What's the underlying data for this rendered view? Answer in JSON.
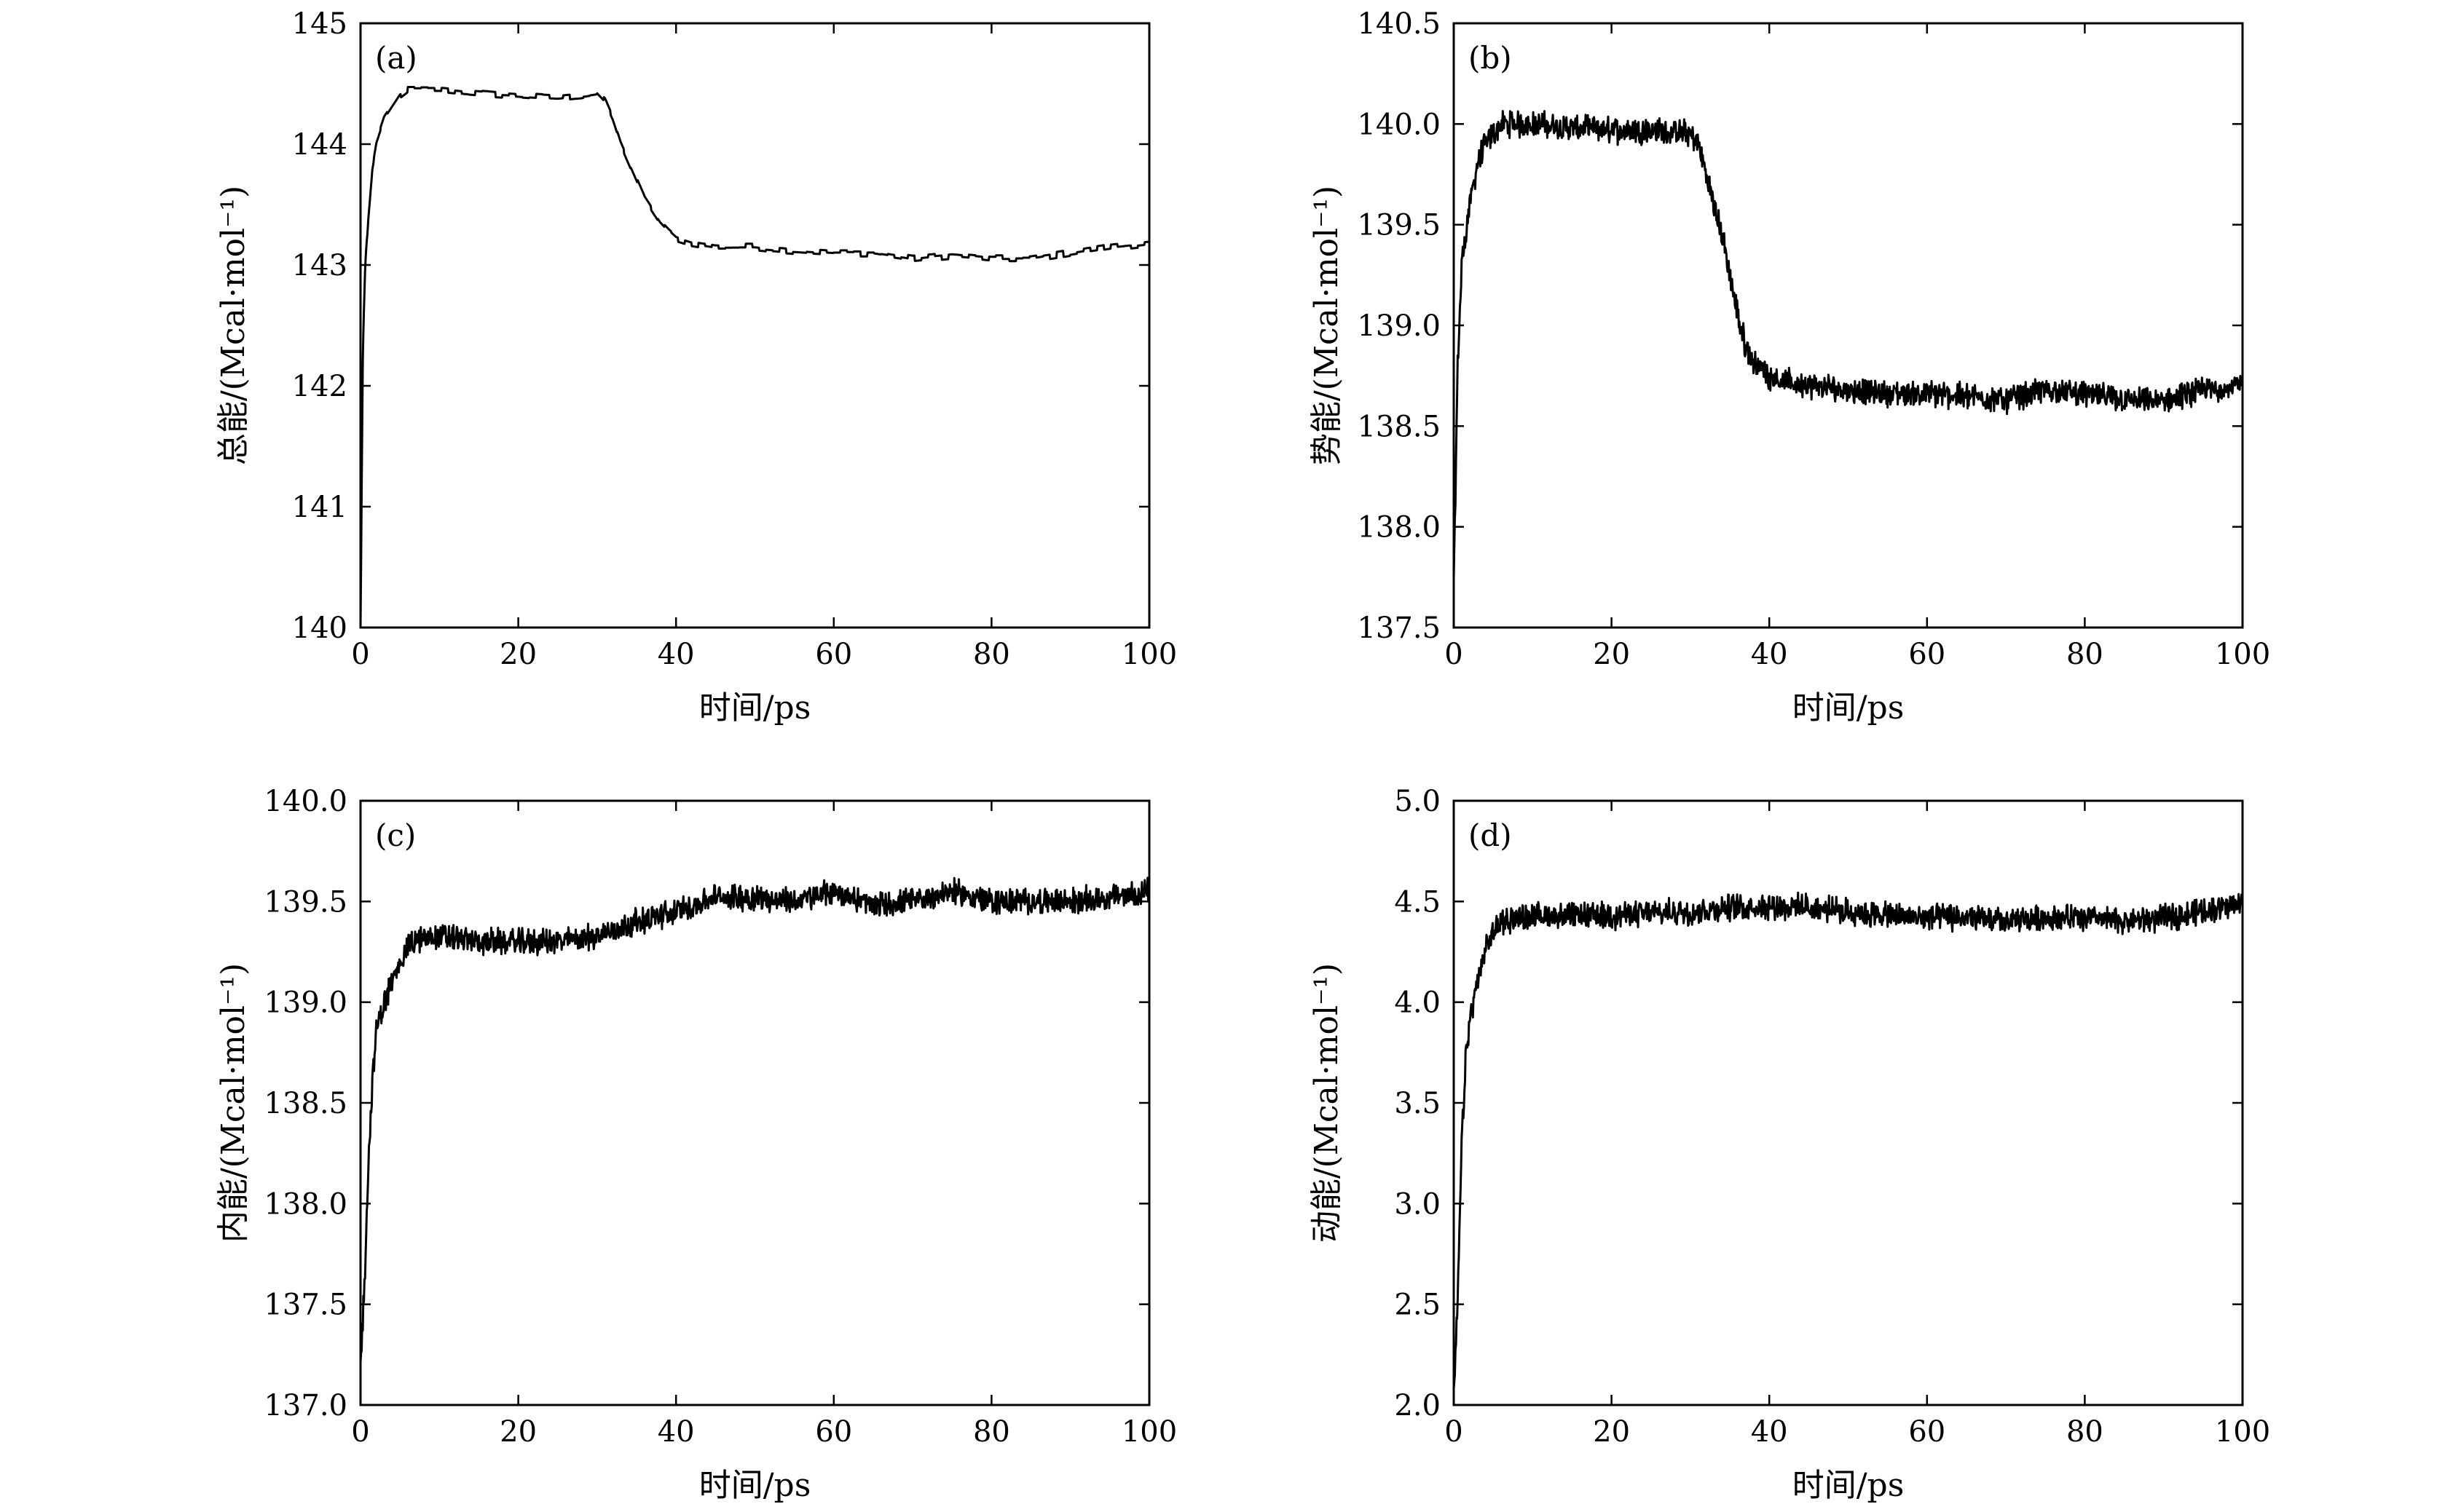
{
  "figure": {
    "panel_count": 4
  },
  "chart_data": [
    {
      "type": "line",
      "panel_label": "(a)",
      "xlabel": "时间/ps",
      "ylabel": "总能/(Mcal·mol⁻¹)",
      "xlim": [
        0,
        100
      ],
      "ylim": [
        140,
        145
      ],
      "xticks": [
        "0",
        "20",
        "40",
        "60",
        "80",
        "100"
      ],
      "yticks": [
        "140",
        "141",
        "142",
        "143",
        "144",
        "145"
      ],
      "grid": false,
      "series": [
        {
          "x": [
            0,
            0.3,
            0.6,
            1,
            1.5,
            2,
            3,
            4,
            5,
            6,
            8,
            10,
            15,
            20,
            25,
            28,
            30,
            31,
            32,
            33,
            34,
            35,
            36,
            37,
            38,
            39,
            40,
            42,
            45,
            50,
            55,
            60,
            65,
            70,
            75,
            80,
            85,
            90,
            95,
            100
          ],
          "y": [
            140,
            142.3,
            143,
            143.4,
            143.8,
            144,
            144.2,
            144.3,
            144.4,
            144.45,
            144.45,
            144.45,
            144.42,
            144.4,
            144.38,
            144.4,
            144.42,
            144.35,
            144.2,
            144.0,
            143.85,
            143.7,
            143.55,
            143.45,
            143.35,
            143.28,
            143.22,
            143.18,
            143.15,
            143.15,
            143.12,
            143.1,
            143.1,
            143.05,
            143.08,
            143.05,
            143.05,
            143.1,
            143.15,
            143.18
          ],
          "noise": 0.03
        }
      ]
    },
    {
      "type": "line",
      "panel_label": "(b)",
      "xlabel": "时间/ps",
      "ylabel": "势能/(Mcal·mol⁻¹)",
      "xlim": [
        0,
        100
      ],
      "ylim": [
        137.5,
        140.5
      ],
      "xticks": [
        "0",
        "20",
        "40",
        "60",
        "80",
        "100"
      ],
      "yticks": [
        "137.5",
        "138.0",
        "138.5",
        "139.0",
        "139.5",
        "140.0",
        "140.5"
      ],
      "grid": false,
      "series": [
        {
          "x": [
            0,
            0.5,
            1,
            2,
            3,
            4,
            5,
            6,
            8,
            10,
            15,
            20,
            25,
            30,
            31,
            32,
            33,
            34,
            35,
            36,
            37,
            38,
            40,
            42,
            45,
            50,
            55,
            60,
            65,
            70,
            75,
            80,
            85,
            90,
            95,
            100
          ],
          "y": [
            137.7,
            138.8,
            139.3,
            139.6,
            139.8,
            139.9,
            139.95,
            140.0,
            140.0,
            140.0,
            139.98,
            139.97,
            139.97,
            139.95,
            139.9,
            139.75,
            139.6,
            139.45,
            139.25,
            139.05,
            138.9,
            138.82,
            138.75,
            138.72,
            138.7,
            138.68,
            138.66,
            138.66,
            138.65,
            138.63,
            138.68,
            138.66,
            138.63,
            138.62,
            138.68,
            138.7
          ],
          "noise": 0.05
        }
      ]
    },
    {
      "type": "line",
      "panel_label": "(c)",
      "xlabel": "时间/ps",
      "ylabel": "内能/(Mcal·mol⁻¹)",
      "xlim": [
        0,
        100
      ],
      "ylim": [
        137.0,
        140.0
      ],
      "xticks": [
        "0",
        "20",
        "40",
        "60",
        "80",
        "100"
      ],
      "yticks": [
        "137.0",
        "137.5",
        "138.0",
        "138.5",
        "139.0",
        "139.5",
        "140.0"
      ],
      "grid": false,
      "series": [
        {
          "x": [
            0,
            0.5,
            1,
            1.5,
            2,
            3,
            4,
            5,
            6,
            8,
            10,
            15,
            20,
            25,
            30,
            35,
            40,
            45,
            50,
            55,
            60,
            65,
            70,
            75,
            80,
            85,
            90,
            95,
            100
          ],
          "y": [
            137.2,
            137.6,
            138.2,
            138.6,
            138.85,
            139.0,
            139.1,
            139.2,
            139.28,
            139.32,
            139.33,
            139.3,
            139.3,
            139.3,
            139.33,
            139.4,
            139.45,
            139.52,
            139.52,
            139.5,
            139.55,
            139.48,
            139.5,
            139.55,
            139.5,
            139.5,
            139.5,
            139.52,
            139.55
          ],
          "noise": 0.05
        }
      ]
    },
    {
      "type": "line",
      "panel_label": "(d)",
      "xlabel": "时间/ps",
      "ylabel": "动能/(Mcal·mol⁻¹)",
      "xlim": [
        0,
        100
      ],
      "ylim": [
        2.0,
        5.0
      ],
      "xticks": [
        "0",
        "20",
        "40",
        "60",
        "80",
        "100"
      ],
      "yticks": [
        "2.0",
        "2.5",
        "3.0",
        "3.5",
        "4.0",
        "4.5",
        "5.0"
      ],
      "grid": false,
      "series": [
        {
          "x": [
            0,
            0.5,
            1,
            1.5,
            2,
            3,
            4,
            5,
            6,
            8,
            10,
            20,
            30,
            35,
            40,
            45,
            50,
            55,
            60,
            65,
            70,
            75,
            80,
            85,
            90,
            95,
            100
          ],
          "y": [
            2.05,
            2.5,
            3.3,
            3.7,
            3.9,
            4.1,
            4.25,
            4.35,
            4.4,
            4.42,
            4.43,
            4.43,
            4.45,
            4.47,
            4.48,
            4.47,
            4.45,
            4.43,
            4.42,
            4.42,
            4.4,
            4.42,
            4.42,
            4.4,
            4.42,
            4.45,
            4.5
          ],
          "noise": 0.05
        }
      ]
    }
  ]
}
